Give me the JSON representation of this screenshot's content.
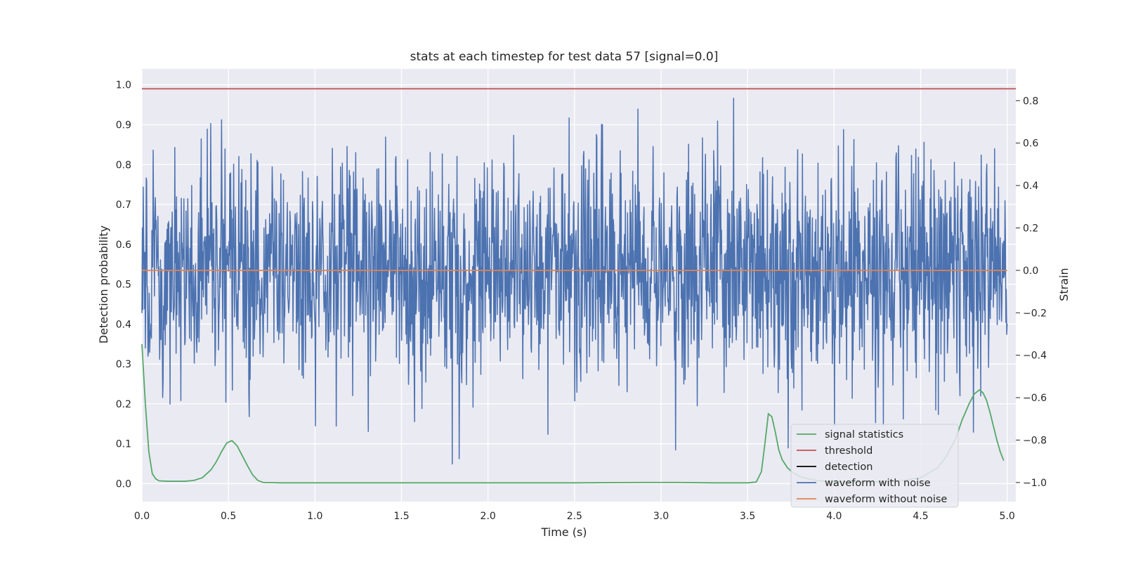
{
  "chart_data": {
    "type": "line",
    "title": "stats at each timestep for test data 57 [signal=0.0]",
    "xlabel": "Time (s)",
    "ylabel": "Detection probability",
    "y2label": "Strain",
    "xlim": [
      0.0,
      5.05
    ],
    "ylim": [
      -0.045,
      1.04
    ],
    "y2lim": [
      -1.09,
      0.95
    ],
    "xticks": [
      "0.0",
      "0.5",
      "1.0",
      "1.5",
      "2.0",
      "2.5",
      "3.0",
      "3.5",
      "4.0",
      "4.5",
      "5.0"
    ],
    "yticks": [
      "0.0",
      "0.1",
      "0.2",
      "0.3",
      "0.4",
      "0.5",
      "0.6",
      "0.7",
      "0.8",
      "0.9",
      "1.0"
    ],
    "y2ticks": [
      "−1.0",
      "−0.8",
      "−0.6",
      "−0.4",
      "−0.2",
      "0.0",
      "0.2",
      "0.4",
      "0.6",
      "0.8"
    ],
    "grid": true,
    "legend_position": "lower-right",
    "series": [
      {
        "name": "signal statistics",
        "axis": "left",
        "color": "#55a868",
        "x": [
          0.0,
          0.02,
          0.04,
          0.06,
          0.08,
          0.1,
          0.15,
          0.2,
          0.25,
          0.3,
          0.35,
          0.4,
          0.43,
          0.46,
          0.49,
          0.52,
          0.55,
          0.58,
          0.61,
          0.64,
          0.67,
          0.7,
          0.8,
          1.0,
          1.5,
          2.0,
          2.5,
          2.9,
          3.1,
          3.3,
          3.5,
          3.55,
          3.58,
          3.6,
          3.62,
          3.64,
          3.66,
          3.68,
          3.7,
          3.73,
          3.76,
          3.8,
          3.85,
          3.9,
          3.95,
          4.0,
          4.1,
          4.2,
          4.3,
          4.4,
          4.5,
          4.6,
          4.65,
          4.7,
          4.74,
          4.78,
          4.81,
          4.84,
          4.86,
          4.88,
          4.9,
          4.92,
          4.94,
          4.96,
          4.98
        ],
        "y": [
          0.35,
          0.2,
          0.08,
          0.025,
          0.012,
          0.007,
          0.006,
          0.006,
          0.006,
          0.008,
          0.015,
          0.035,
          0.055,
          0.08,
          0.102,
          0.108,
          0.095,
          0.07,
          0.045,
          0.022,
          0.008,
          0.003,
          0.002,
          0.002,
          0.002,
          0.002,
          0.002,
          0.003,
          0.003,
          0.002,
          0.002,
          0.004,
          0.03,
          0.1,
          0.175,
          0.168,
          0.13,
          0.085,
          0.06,
          0.04,
          0.028,
          0.018,
          0.012,
          0.008,
          0.006,
          0.005,
          0.004,
          0.004,
          0.005,
          0.008,
          0.015,
          0.04,
          0.07,
          0.11,
          0.16,
          0.2,
          0.225,
          0.235,
          0.228,
          0.21,
          0.18,
          0.145,
          0.11,
          0.08,
          0.058
        ]
      },
      {
        "name": "threshold",
        "axis": "left",
        "color": "#c44e52",
        "x": [
          0.0,
          5.05
        ],
        "y": [
          0.99,
          0.99
        ]
      },
      {
        "name": "detection",
        "axis": "left",
        "color": "#000000",
        "x": [],
        "y": []
      },
      {
        "name": "waveform with noise",
        "axis": "right",
        "color": "#4c72b0",
        "x_range": [
          0.0,
          5.0
        ],
        "n_samples": 2000,
        "noise_mean": 0.0,
        "noise_std": 0.27,
        "y_max": 0.86,
        "y_min": -1.0
      },
      {
        "name": "waveform without noise",
        "axis": "right",
        "color": "#dd8452",
        "x": [
          0.0,
          5.0
        ],
        "y": [
          0.0,
          0.0
        ]
      }
    ]
  }
}
